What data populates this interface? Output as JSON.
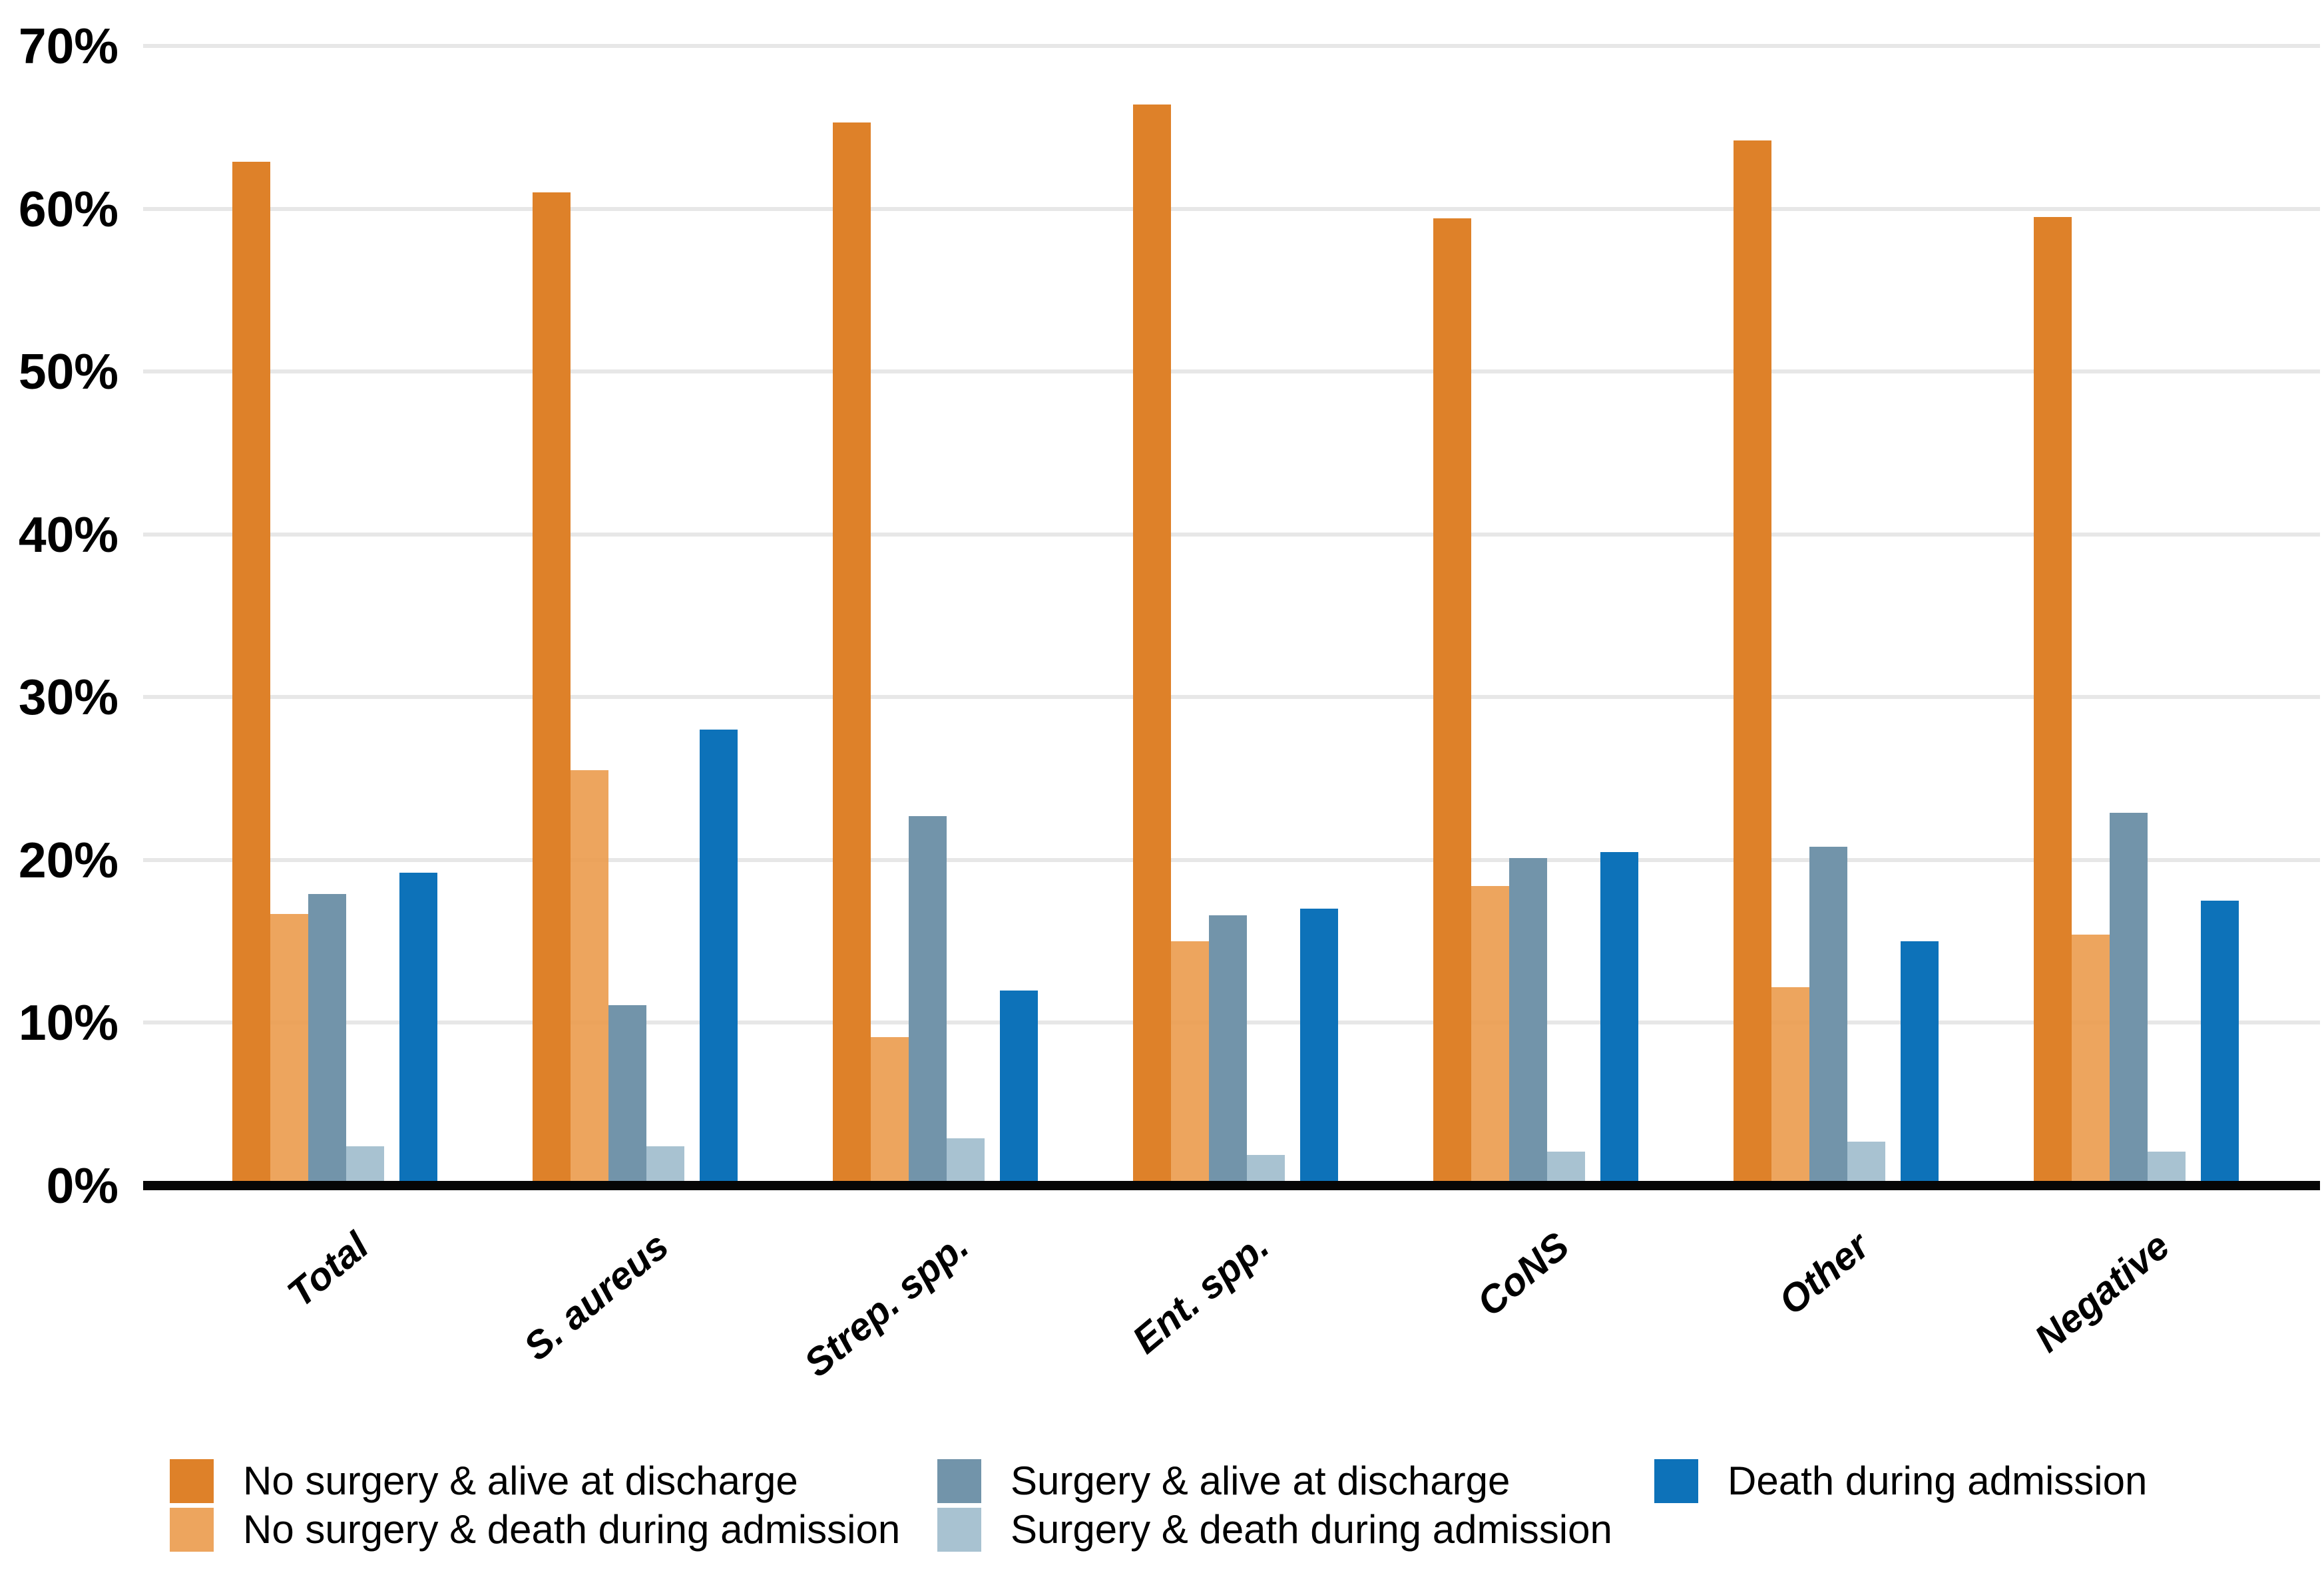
{
  "chart_data": {
    "type": "bar",
    "title": "",
    "xlabel": "",
    "ylabel": "",
    "ylim": [
      0,
      70
    ],
    "ytick_step": 10,
    "yticks": [
      "0%",
      "10%",
      "20%",
      "30%",
      "40%",
      "50%",
      "60%",
      "70%"
    ],
    "grid": true,
    "legend_position": "bottom",
    "categories": [
      "Total",
      "S. aureus",
      "Strep. spp.",
      "Ent. spp.",
      "CoNS",
      "Other",
      "Negative"
    ],
    "series": [
      {
        "name": "No surgery & alive at discharge",
        "color": "#de8129",
        "values": [
          62.9,
          61.0,
          65.3,
          66.4,
          59.4,
          64.2,
          59.5
        ]
      },
      {
        "name": "No surgery & death during admission",
        "color": "rgba(235,155,77,0.9)",
        "values": [
          16.7,
          25.5,
          9.1,
          15.0,
          18.4,
          12.2,
          15.4
        ]
      },
      {
        "name": "Surgery & alive at discharge",
        "color": "#7294aa",
        "values": [
          17.9,
          11.1,
          22.7,
          16.6,
          20.1,
          20.8,
          22.9
        ]
      },
      {
        "name": "Surgery & death during admission",
        "color": "rgba(158,187,204,0.9)",
        "values": [
          2.4,
          2.4,
          2.9,
          1.9,
          2.1,
          2.7,
          2.1
        ]
      },
      {
        "name": "Death during admission",
        "color": "#0d72b9",
        "values": [
          19.2,
          28.0,
          12.0,
          17.0,
          20.5,
          15.0,
          17.5
        ]
      }
    ],
    "legend_columns": [
      [
        0,
        1
      ],
      [
        2,
        3
      ],
      [
        4
      ]
    ],
    "colors": {
      "gridline": "#e7e7e7",
      "axis": "#060606",
      "text": "#000000",
      "background": "#ffffff"
    }
  }
}
